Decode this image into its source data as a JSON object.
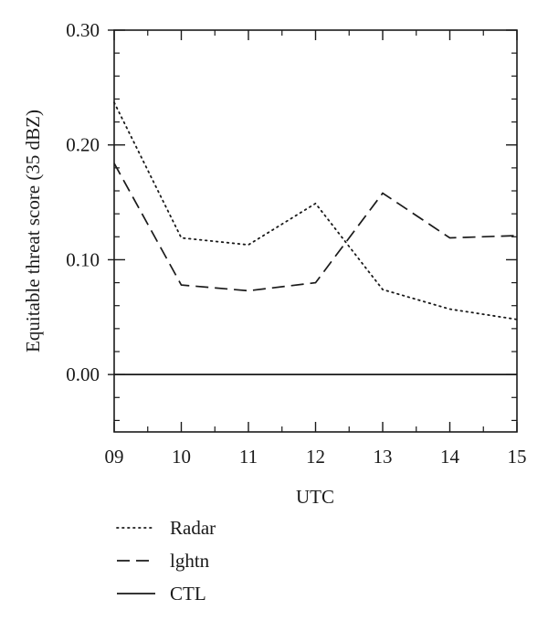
{
  "chart_data": {
    "type": "line",
    "xlabel": "UTC",
    "ylabel": "Equitable threat score (35 dBZ)",
    "x": [
      "09",
      "10",
      "11",
      "12",
      "13",
      "14",
      "15"
    ],
    "xlim": [
      9,
      15
    ],
    "ylim": [
      -0.05,
      0.3
    ],
    "yticks": [
      "0.00",
      "0.10",
      "0.20",
      "0.30"
    ],
    "grid": false,
    "legend_position": "bottom-left",
    "series": [
      {
        "name": "Radar",
        "line_style": "dotted",
        "color": "#1a1a1a",
        "values": [
          0.237,
          0.119,
          0.113,
          0.149,
          0.074,
          0.057,
          0.048
        ]
      },
      {
        "name": "lghtn",
        "line_style": "dashed",
        "color": "#1a1a1a",
        "values": [
          0.184,
          0.078,
          0.073,
          0.08,
          0.158,
          0.119,
          0.121
        ]
      },
      {
        "name": "CTL",
        "line_style": "solid",
        "color": "#1a1a1a",
        "values": [
          0.0,
          0.0,
          0.0,
          0.0,
          0.0,
          0.0,
          0.0
        ]
      }
    ]
  }
}
